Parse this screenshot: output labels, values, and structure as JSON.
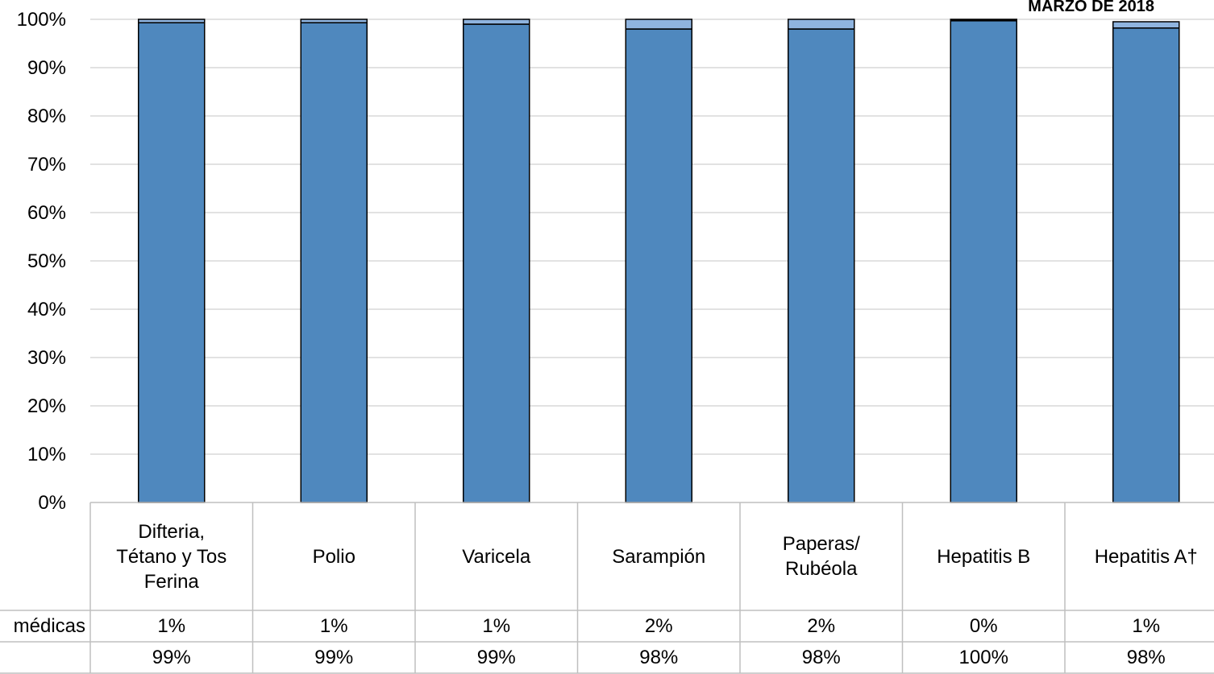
{
  "chart_data": {
    "type": "bar",
    "stacked": true,
    "title": "MARZO DE 2018",
    "categories": [
      "Difteria,\nTétano y Tos\nFerina",
      "Polio",
      "Varicela",
      "Sarampión",
      "Paperas/\nRubéola",
      "Hepatitis B",
      "Hepatitis A†"
    ],
    "series": [
      {
        "values": [
          99.3,
          99.3,
          99.0,
          98.0,
          98.0,
          99.7,
          98.2
        ],
        "color": "#4F88BE"
      },
      {
        "name": "médicas",
        "values": [
          0.7,
          0.7,
          1.0,
          2.0,
          2.0,
          0.2,
          1.3
        ],
        "color": "#8FB4DF"
      },
      {
        "values": [
          0,
          0,
          0,
          0,
          0,
          0.1,
          0
        ],
        "color": "#1F3F66"
      }
    ],
    "ylim": [
      0,
      100
    ],
    "yticks": [
      "0%",
      "10%",
      "20%",
      "30%",
      "40%",
      "50%",
      "60%",
      "70%",
      "80%",
      "90%",
      "100%"
    ],
    "grid": true,
    "legend": "none",
    "data_table": {
      "rows": [
        {
          "label": "médicas",
          "values": [
            "1%",
            "1%",
            "1%",
            "2%",
            "2%",
            "0%",
            "1%"
          ]
        },
        {
          "label": "",
          "values": [
            "99%",
            "99%",
            "99%",
            "98%",
            "98%",
            "100%",
            "98%"
          ]
        }
      ]
    }
  }
}
